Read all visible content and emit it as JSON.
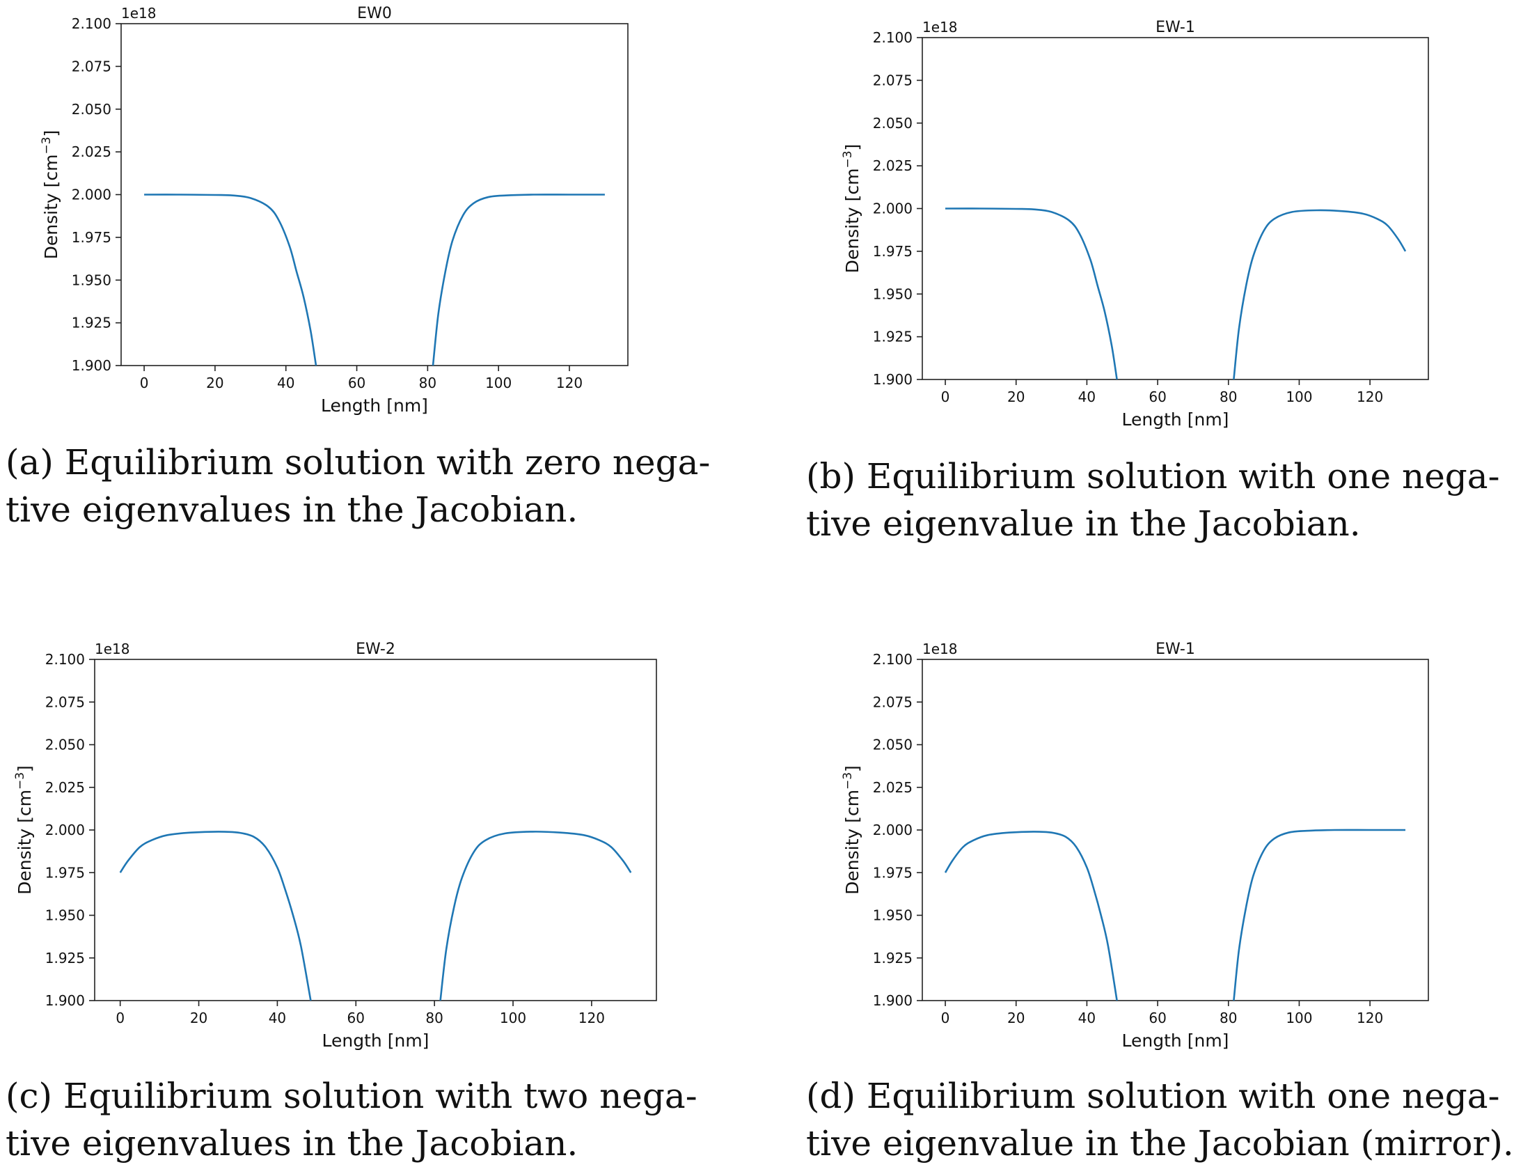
{
  "chart_data": [
    {
      "type": "line",
      "title": "EW0",
      "xlabel": "Length [nm]",
      "ylabel_base": "Density [cm",
      "ylabel_sup": "−3",
      "ylabel_end": "]",
      "offset_text": "1e18",
      "xlim": [
        -6.5,
        136.5
      ],
      "ylim": [
        1.9,
        2.1
      ],
      "xticks": [
        "0",
        "20",
        "40",
        "60",
        "80",
        "100",
        "120"
      ],
      "yticks": [
        "1.900",
        "1.925",
        "1.950",
        "1.975",
        "2.000",
        "2.025",
        "2.050",
        "2.075",
        "2.100"
      ],
      "series_color": "#1f77b4",
      "left_branch": [
        [
          0,
          2.0
        ],
        [
          10,
          2.0
        ],
        [
          20,
          1.9998
        ],
        [
          25,
          1.9995
        ],
        [
          30,
          1.998
        ],
        [
          35,
          1.993
        ],
        [
          38,
          1.985
        ],
        [
          41,
          1.97
        ],
        [
          43,
          1.955
        ],
        [
          45,
          1.94
        ],
        [
          47,
          1.92
        ],
        [
          48.5,
          1.9
        ]
      ],
      "right_branch": [
        [
          81.5,
          1.9
        ],
        [
          83,
          1.93
        ],
        [
          85,
          1.955
        ],
        [
          87,
          1.973
        ],
        [
          90,
          1.988
        ],
        [
          93,
          1.995
        ],
        [
          97,
          1.9985
        ],
        [
          102,
          1.9995
        ],
        [
          110,
          2.0
        ],
        [
          120,
          2.0
        ],
        [
          130,
          2.0
        ]
      ],
      "caption_line1": "(a) Equilibrium solution with zero nega-",
      "caption_line2": "tive eigenvalues in the Jacobian."
    },
    {
      "type": "line",
      "title": "EW-1",
      "xlabel": "Length [nm]",
      "ylabel_base": "Density [cm",
      "ylabel_sup": "−3",
      "ylabel_end": "]",
      "offset_text": "1e18",
      "xlim": [
        -6.5,
        136.5
      ],
      "ylim": [
        1.9,
        2.1
      ],
      "xticks": [
        "0",
        "20",
        "40",
        "60",
        "80",
        "100",
        "120"
      ],
      "yticks": [
        "1.900",
        "1.925",
        "1.950",
        "1.975",
        "2.000",
        "2.025",
        "2.050",
        "2.075",
        "2.100"
      ],
      "series_color": "#1f77b4",
      "left_branch": [
        [
          0,
          2.0
        ],
        [
          10,
          2.0
        ],
        [
          20,
          1.9998
        ],
        [
          25,
          1.9995
        ],
        [
          30,
          1.998
        ],
        [
          35,
          1.993
        ],
        [
          38,
          1.985
        ],
        [
          41,
          1.97
        ],
        [
          43,
          1.955
        ],
        [
          45,
          1.94
        ],
        [
          47,
          1.92
        ],
        [
          48.5,
          1.9
        ]
      ],
      "right_branch": [
        [
          81.5,
          1.9
        ],
        [
          83,
          1.93
        ],
        [
          85,
          1.955
        ],
        [
          87,
          1.972
        ],
        [
          90,
          1.987
        ],
        [
          93,
          1.994
        ],
        [
          98,
          1.998
        ],
        [
          105,
          1.999
        ],
        [
          112,
          1.9985
        ],
        [
          118,
          1.997
        ],
        [
          122,
          1.994
        ],
        [
          125,
          1.99
        ],
        [
          128,
          1.982
        ],
        [
          130,
          1.975
        ]
      ],
      "caption_line1": "(b) Equilibrium solution with one nega-",
      "caption_line2": "tive eigenvalue in the Jacobian."
    },
    {
      "type": "line",
      "title": "EW-2",
      "xlabel": "Length [nm]",
      "ylabel_base": "Density [cm",
      "ylabel_sup": "−3",
      "ylabel_end": "]",
      "offset_text": "1e18",
      "xlim": [
        -6.5,
        136.5
      ],
      "ylim": [
        1.9,
        2.1
      ],
      "xticks": [
        "0",
        "20",
        "40",
        "60",
        "80",
        "100",
        "120"
      ],
      "yticks": [
        "1.900",
        "1.925",
        "1.950",
        "1.975",
        "2.000",
        "2.025",
        "2.050",
        "2.075",
        "2.100"
      ],
      "series_color": "#1f77b4",
      "left_branch": [
        [
          0,
          1.975
        ],
        [
          2,
          1.982
        ],
        [
          5,
          1.99
        ],
        [
          8,
          1.994
        ],
        [
          12,
          1.997
        ],
        [
          18,
          1.9985
        ],
        [
          25,
          1.999
        ],
        [
          30,
          1.9985
        ],
        [
          34,
          1.996
        ],
        [
          37,
          1.99
        ],
        [
          40,
          1.978
        ],
        [
          42,
          1.965
        ],
        [
          44,
          1.95
        ],
        [
          46,
          1.932
        ],
        [
          48.5,
          1.9
        ]
      ],
      "right_branch": [
        [
          81.5,
          1.9
        ],
        [
          83,
          1.93
        ],
        [
          85,
          1.955
        ],
        [
          87,
          1.972
        ],
        [
          90,
          1.987
        ],
        [
          93,
          1.994
        ],
        [
          98,
          1.998
        ],
        [
          105,
          1.999
        ],
        [
          112,
          1.9985
        ],
        [
          118,
          1.997
        ],
        [
          122,
          1.994
        ],
        [
          125,
          1.99
        ],
        [
          128,
          1.982
        ],
        [
          130,
          1.975
        ]
      ],
      "caption_line1": "(c) Equilibrium solution with two nega-",
      "caption_line2": "tive eigenvalues in the Jacobian."
    },
    {
      "type": "line",
      "title": "EW-1",
      "xlabel": "Length [nm]",
      "ylabel_base": "Density [cm",
      "ylabel_sup": "−3",
      "ylabel_end": "]",
      "offset_text": "1e18",
      "xlim": [
        -6.5,
        136.5
      ],
      "ylim": [
        1.9,
        2.1
      ],
      "xticks": [
        "0",
        "20",
        "40",
        "60",
        "80",
        "100",
        "120"
      ],
      "yticks": [
        "1.900",
        "1.925",
        "1.950",
        "1.975",
        "2.000",
        "2.025",
        "2.050",
        "2.075",
        "2.100"
      ],
      "series_color": "#1f77b4",
      "left_branch": [
        [
          0,
          1.975
        ],
        [
          2,
          1.982
        ],
        [
          5,
          1.99
        ],
        [
          8,
          1.994
        ],
        [
          12,
          1.997
        ],
        [
          18,
          1.9985
        ],
        [
          25,
          1.999
        ],
        [
          30,
          1.9985
        ],
        [
          34,
          1.996
        ],
        [
          37,
          1.99
        ],
        [
          40,
          1.978
        ],
        [
          42,
          1.965
        ],
        [
          44,
          1.95
        ],
        [
          46,
          1.932
        ],
        [
          48.5,
          1.9
        ]
      ],
      "right_branch": [
        [
          81.5,
          1.9
        ],
        [
          83,
          1.93
        ],
        [
          85,
          1.955
        ],
        [
          87,
          1.973
        ],
        [
          90,
          1.988
        ],
        [
          93,
          1.995
        ],
        [
          97,
          1.9985
        ],
        [
          102,
          1.9995
        ],
        [
          110,
          2.0
        ],
        [
          120,
          2.0
        ],
        [
          130,
          2.0
        ]
      ],
      "caption_line1": "(d) Equilibrium solution with one nega-",
      "caption_line2": "tive eigenvalue in the Jacobian (mirror)."
    }
  ]
}
